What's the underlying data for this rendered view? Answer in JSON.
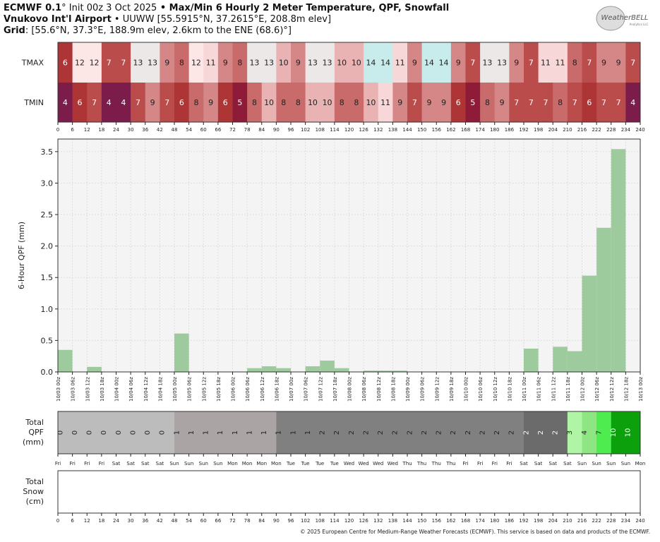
{
  "header": {
    "line1_model": "ECMWF 0.1",
    "line1_init": "° Init 00z 3 Oct 2025",
    "line1_sep": " • ",
    "line1_title": "Max/Min 6 Hourly 2 Meter Temperature, QPF, Snowfall",
    "line2_station": "Vnukovo Int'l Airport",
    "line2_sep": " • ",
    "line2_info": "UUWW [55.5915°N, 37.2615°E, 208.8m elev]",
    "line3_label": "Grid",
    "line3_info": ": [55.6°N, 37.3°E, 188.9m elev, 2.6km to the ENE (68.6)°]"
  },
  "logo": {
    "text": "WeatherBELL",
    "sub": "Analytics LLC"
  },
  "footer": "© 2025 European Centre for Medium-Range Weather Forecasts (ECMWF). This service is based on data and products of the ECMWF.",
  "chart_data": {
    "type": "bar",
    "x_hours": [
      0,
      6,
      12,
      18,
      24,
      30,
      36,
      42,
      48,
      54,
      60,
      66,
      72,
      78,
      84,
      90,
      96,
      102,
      108,
      114,
      120,
      126,
      132,
      138,
      144,
      150,
      156,
      162,
      168,
      174,
      180,
      186,
      192,
      198,
      204,
      210,
      216,
      222,
      228,
      234,
      240
    ],
    "temperature": {
      "tmax_label": "TMAX",
      "tmin_label": "TMIN",
      "tmax": [
        6,
        12,
        12,
        7,
        7,
        13,
        13,
        9,
        8,
        12,
        11,
        9,
        8,
        13,
        13,
        10,
        9,
        13,
        13,
        10,
        10,
        14,
        14,
        11,
        9,
        14,
        14,
        9,
        7,
        13,
        13,
        9,
        7,
        11,
        11,
        8,
        7,
        9,
        9,
        7
      ],
      "tmin": [
        4,
        6,
        7,
        4,
        4,
        7,
        9,
        7,
        6,
        8,
        9,
        6,
        5,
        8,
        10,
        8,
        8,
        10,
        10,
        8,
        8,
        10,
        11,
        9,
        7,
        9,
        9,
        6,
        5,
        8,
        9,
        7,
        7,
        7,
        8,
        7,
        6,
        7,
        7,
        4
      ]
    },
    "qpf": {
      "ylabel": "6-Hour QPF (mm)",
      "ylim": [
        0,
        3.7
      ],
      "yticks": [
        "0.0",
        "0.5",
        "1.0",
        "1.5",
        "2.0",
        "2.5",
        "3.0",
        "3.5"
      ],
      "grid": true,
      "bar_color": "#9ecb9e",
      "values": [
        0.35,
        0,
        0.08,
        0,
        0,
        0,
        0,
        0,
        0.61,
        0,
        0,
        0,
        0,
        0.06,
        0.09,
        0.06,
        0,
        0.09,
        0.18,
        0.06,
        0,
        0.02,
        0.02,
        0.02,
        0,
        0,
        0,
        0,
        0,
        0,
        0,
        0,
        0.37,
        0,
        0.4,
        0.33,
        1.53,
        2.29,
        3.54,
        0
      ],
      "date_labels": [
        "10/03 00z",
        "10/03 06z",
        "10/03 12z",
        "10/03 18z",
        "10/04 00z",
        "10/04 06z",
        "10/04 12z",
        "10/04 18z",
        "10/05 00z",
        "10/05 06z",
        "10/05 12z",
        "10/05 18z",
        "10/06 00z",
        "10/06 06z",
        "10/06 12z",
        "10/06 18z",
        "10/07 00z",
        "10/07 06z",
        "10/07 12z",
        "10/07 18z",
        "10/08 00z",
        "10/08 06z",
        "10/08 12z",
        "10/08 18z",
        "10/09 00z",
        "10/09 06z",
        "10/09 12z",
        "10/09 18z",
        "10/10 00z",
        "10/10 06z",
        "10/10 12z",
        "10/10 18z",
        "10/11 00z",
        "10/11 06z",
        "10/11 12z",
        "10/11 18z",
        "10/12 00z",
        "10/12 06z",
        "10/12 12z",
        "10/12 18z",
        "10/13 00z"
      ]
    },
    "total_qpf": {
      "label": [
        "Total",
        "QPF",
        "(mm)"
      ],
      "values": [
        0,
        0,
        0,
        0,
        0,
        0,
        0,
        0,
        1,
        1,
        1,
        1,
        1,
        1,
        1,
        1,
        1,
        1,
        2,
        2,
        2,
        2,
        2,
        2,
        2,
        2,
        2,
        2,
        2,
        2,
        2,
        2,
        2,
        2,
        2,
        3,
        4,
        7,
        10,
        10
      ],
      "colors": [
        "#bcbcbc",
        "#bcbcbc",
        "#bcbcbc",
        "#bcbcbc",
        "#bcbcbc",
        "#bcbcbc",
        "#bcbcbc",
        "#bcbcbc",
        "#aaa4a4",
        "#aaa4a4",
        "#aaa4a4",
        "#aaa4a4",
        "#aaa4a4",
        "#aaa4a4",
        "#aaa4a4",
        "#808080",
        "#808080",
        "#808080",
        "#808080",
        "#808080",
        "#808080",
        "#808080",
        "#808080",
        "#808080",
        "#808080",
        "#808080",
        "#808080",
        "#808080",
        "#808080",
        "#808080",
        "#808080",
        "#808080",
        "#6b6b6b",
        "#6b6b6b",
        "#6b6b6b",
        "#b0f5a5",
        "#8de682",
        "#4fec4f",
        "#0ca00c",
        "#0ca00c"
      ],
      "day_labels": [
        "Fri",
        "Fri",
        "Fri",
        "Fri",
        "Sat",
        "Sat",
        "Sat",
        "Sat",
        "Sun",
        "Sun",
        "Sun",
        "Sun",
        "Mon",
        "Mon",
        "Mon",
        "Mon",
        "Tue",
        "Tue",
        "Tue",
        "Tue",
        "Wed",
        "Wed",
        "Wed",
        "Wed",
        "Thu",
        "Thu",
        "Thu",
        "Thu",
        "Fri",
        "Fri",
        "Fri",
        "Fri",
        "Sat",
        "Sat",
        "Sat",
        "Sat",
        "Sun",
        "Sun",
        "Sun",
        "Sun",
        "Mon"
      ]
    },
    "total_snow": {
      "label": [
        "Total",
        "Snow",
        "(cm)"
      ],
      "values": []
    }
  }
}
